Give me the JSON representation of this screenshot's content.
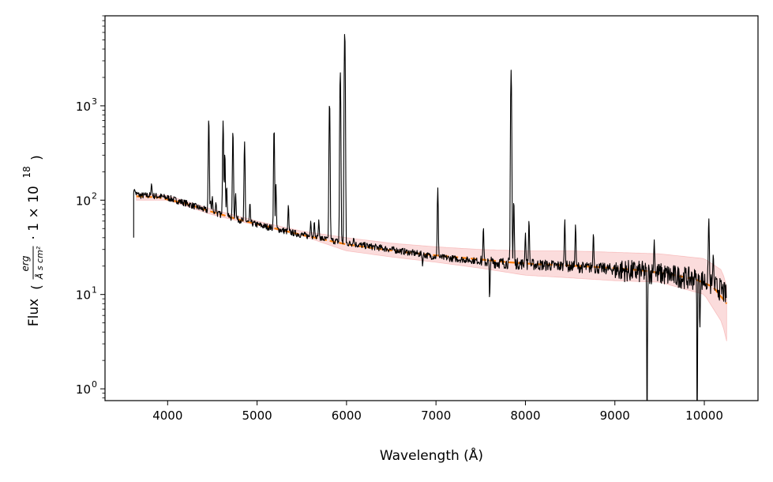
{
  "chart_data": {
    "type": "line",
    "title": "",
    "xlabel": "Wavelength (Å)",
    "ylabel": {
      "prefix": "Flux",
      "numerator": "erg",
      "denominator": "Å s cm²",
      "multiplier": "· 1 × 10",
      "exponent": "18"
    },
    "y_scale": "log",
    "xlim": [
      3300,
      10600
    ],
    "ylim": [
      0.75,
      9000
    ],
    "grid": false,
    "x_ticks": [
      {
        "value": 4000,
        "label": "4000"
      },
      {
        "value": 5000,
        "label": "5000"
      },
      {
        "value": 6000,
        "label": "6000"
      },
      {
        "value": 7000,
        "label": "7000"
      },
      {
        "value": 8000,
        "label": "8000"
      },
      {
        "value": 9000,
        "label": "9000"
      },
      {
        "value": 10000,
        "label": "10000"
      }
    ],
    "y_ticks": [
      {
        "value": 1,
        "base": "10",
        "exp": "0"
      },
      {
        "value": 10,
        "base": "10",
        "exp": "1"
      },
      {
        "value": 100,
        "base": "10",
        "exp": "2"
      },
      {
        "value": 1000,
        "base": "10",
        "exp": "3"
      }
    ],
    "series": [
      {
        "kind": "spectrum",
        "color": "#000000",
        "continuum": [
          [
            3620,
            120
          ],
          [
            3700,
            112
          ],
          [
            3800,
            112
          ],
          [
            3900,
            110
          ],
          [
            4000,
            106
          ],
          [
            4200,
            93
          ],
          [
            4400,
            80
          ],
          [
            4600,
            70
          ],
          [
            4800,
            62
          ],
          [
            5000,
            55
          ],
          [
            5200,
            50
          ],
          [
            5400,
            45
          ],
          [
            5600,
            41
          ],
          [
            5800,
            38
          ],
          [
            6000,
            35
          ],
          [
            6200,
            33
          ],
          [
            6400,
            31
          ],
          [
            6600,
            29
          ],
          [
            6800,
            27
          ],
          [
            7000,
            25
          ],
          [
            7200,
            24
          ],
          [
            7400,
            23
          ],
          [
            7600,
            22
          ],
          [
            7800,
            21.5
          ],
          [
            8000,
            21
          ],
          [
            8200,
            20.5
          ],
          [
            8400,
            20
          ],
          [
            8600,
            19.5
          ],
          [
            8800,
            19
          ],
          [
            9000,
            18.5
          ],
          [
            9200,
            17.5
          ],
          [
            9400,
            17
          ],
          [
            9600,
            16
          ],
          [
            9800,
            15
          ],
          [
            10000,
            14
          ],
          [
            10200,
            11
          ],
          [
            10250,
            9.5
          ]
        ],
        "lines": [
          [
            3630,
            130
          ],
          [
            3820,
            150
          ],
          [
            4460,
            740
          ],
          [
            4480,
            100
          ],
          [
            4500,
            110
          ],
          [
            4540,
            95
          ],
          [
            4620,
            700
          ],
          [
            4640,
            320
          ],
          [
            4660,
            140
          ],
          [
            4730,
            550
          ],
          [
            4760,
            120
          ],
          [
            4860,
            420
          ],
          [
            4920,
            95
          ],
          [
            5190,
            580
          ],
          [
            5210,
            150
          ],
          [
            5350,
            90
          ],
          [
            5600,
            60
          ],
          [
            5640,
            60
          ],
          [
            5690,
            62
          ],
          [
            5810,
            1100
          ],
          [
            5930,
            2300
          ],
          [
            5980,
            6100
          ],
          [
            6080,
            40
          ],
          [
            7020,
            135
          ],
          [
            7530,
            52
          ],
          [
            7840,
            2400
          ],
          [
            7870,
            100
          ],
          [
            8000,
            45
          ],
          [
            8040,
            62
          ],
          [
            8440,
            63
          ],
          [
            8560,
            55
          ],
          [
            8760,
            45
          ],
          [
            9440,
            38
          ],
          [
            9920,
            30
          ],
          [
            10050,
            65
          ],
          [
            10100,
            27
          ]
        ],
        "dips": [
          [
            6850,
            20
          ],
          [
            7600,
            8
          ],
          [
            9360,
            0.2
          ],
          [
            9920,
            0.2
          ],
          [
            9950,
            4
          ]
        ]
      },
      {
        "kind": "model",
        "style": "dashed",
        "color": "#ff7f0e",
        "points": [
          [
            3650,
            110
          ],
          [
            3900,
            107
          ],
          [
            4200,
            92
          ],
          [
            4500,
            75
          ],
          [
            4800,
            62
          ],
          [
            5100,
            53
          ],
          [
            5400,
            45
          ],
          [
            5700,
            39
          ],
          [
            6000,
            34
          ],
          [
            6300,
            31
          ],
          [
            6600,
            28.5
          ],
          [
            6900,
            26.5
          ],
          [
            7200,
            25
          ],
          [
            7500,
            23.5
          ],
          [
            7800,
            22
          ],
          [
            8100,
            21
          ],
          [
            8400,
            20.5
          ],
          [
            8700,
            19.8
          ],
          [
            9000,
            19
          ],
          [
            9300,
            18
          ],
          [
            9600,
            16.5
          ],
          [
            9900,
            14.5
          ],
          [
            10100,
            12
          ],
          [
            10250,
            8
          ]
        ]
      },
      {
        "kind": "uncertainty-band",
        "color": "#f8c0c0",
        "upper": [
          [
            3650,
            118
          ],
          [
            4000,
            112
          ],
          [
            4500,
            80
          ],
          [
            5000,
            60
          ],
          [
            5500,
            47
          ],
          [
            6000,
            40
          ],
          [
            6500,
            35
          ],
          [
            7000,
            32
          ],
          [
            7500,
            30
          ],
          [
            8000,
            29
          ],
          [
            8500,
            29
          ],
          [
            9000,
            28
          ],
          [
            9500,
            27
          ],
          [
            10000,
            24
          ],
          [
            10200,
            18
          ],
          [
            10250,
            12
          ]
        ],
        "lower": [
          [
            3650,
            100
          ],
          [
            4000,
            100
          ],
          [
            4500,
            70
          ],
          [
            5000,
            54
          ],
          [
            5500,
            42
          ],
          [
            6000,
            29
          ],
          [
            6500,
            25
          ],
          [
            7000,
            22
          ],
          [
            7500,
            19
          ],
          [
            8000,
            16
          ],
          [
            8500,
            15
          ],
          [
            9000,
            14
          ],
          [
            9500,
            13.5
          ],
          [
            10000,
            10
          ],
          [
            10200,
            5
          ],
          [
            10250,
            3.2
          ]
        ]
      }
    ]
  }
}
